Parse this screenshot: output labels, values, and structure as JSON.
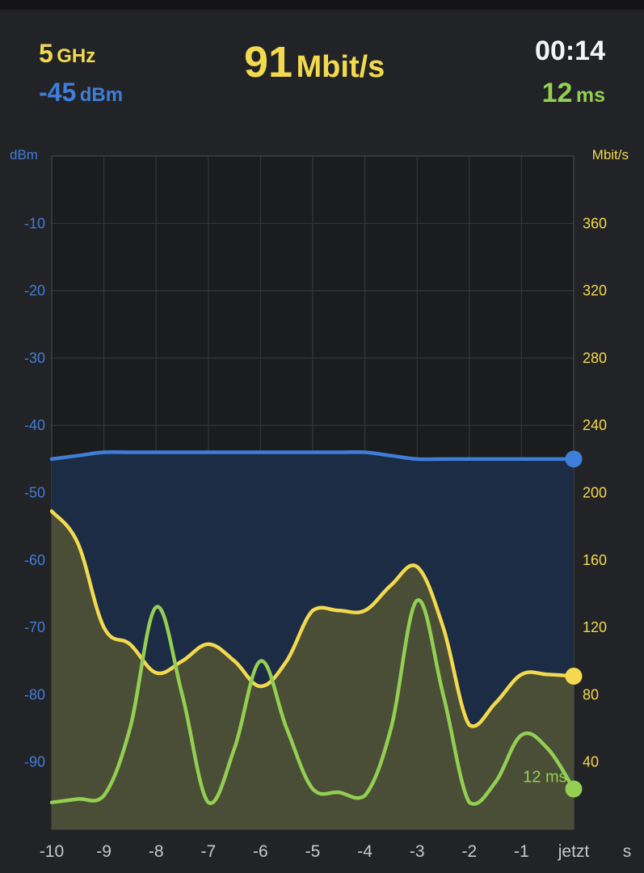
{
  "header": {
    "band_value": "5",
    "band_unit": "GHz",
    "signal_value": "-45",
    "signal_unit": "dBm",
    "speed_value": "91",
    "speed_unit": "Mbit/s",
    "elapsed": "00:14",
    "latency_value": "12",
    "latency_unit": "ms"
  },
  "colors": {
    "signal": "#3f7ed8",
    "speed": "#f2d94e",
    "latency": "#93cf52",
    "background": "#222326",
    "plot_background": "#1b1c1e"
  },
  "chart_data": {
    "type": "line",
    "x": [
      -10,
      -9.5,
      -9,
      -8.5,
      -8,
      -7.5,
      -7,
      -6.5,
      -6,
      -5.5,
      -5,
      -4.5,
      -4,
      -3.5,
      -3,
      -2.5,
      -2,
      -1.5,
      -1,
      -0.5,
      0
    ],
    "x_tick_values": [
      -10,
      -9,
      -8,
      -7,
      -6,
      -5,
      -4,
      -3,
      -2,
      -1,
      0
    ],
    "x_tick_labels": [
      "-10",
      "-9",
      "-8",
      "-7",
      "-6",
      "-5",
      "-4",
      "-3",
      "-2",
      "-1",
      "jetzt"
    ],
    "x_unit": "s",
    "xlim": [
      -10,
      0
    ],
    "left_axis": {
      "label": "dBm",
      "ylim": [
        -100,
        0
      ],
      "tick_values": [
        -10,
        -20,
        -30,
        -40,
        -50,
        -60,
        -70,
        -80,
        -90
      ]
    },
    "right_axis": {
      "label": "Mbit/s",
      "ylim": [
        0,
        400
      ],
      "tick_values": [
        360,
        320,
        280,
        240,
        200,
        160,
        120,
        80,
        40
      ]
    },
    "grid": true,
    "series": [
      {
        "key": "signal",
        "axis": "left",
        "values": [
          -45,
          -44.5,
          -44,
          -44,
          -44,
          -44,
          -44,
          -44,
          -44,
          -44,
          -44,
          -44,
          -44,
          -44.5,
          -45,
          -45,
          -45,
          -45,
          -45,
          -45,
          -45
        ]
      },
      {
        "key": "speed",
        "axis": "right",
        "values": [
          189,
          170,
          120,
          110,
          93,
          100,
          110,
          100,
          85,
          100,
          130,
          130,
          130,
          145,
          156,
          120,
          62,
          75,
          92,
          92,
          91
        ]
      },
      {
        "key": "latency",
        "axis": "left",
        "values": [
          -96,
          -95.5,
          -95,
          -85,
          -67,
          -80,
          -96,
          -88,
          -75,
          -85,
          -94,
          -94.5,
          -95,
          -85,
          -66,
          -80,
          -96,
          -93,
          -86,
          -88,
          -94
        ]
      }
    ],
    "annotations": [
      {
        "text": "12 ms",
        "series": "latency",
        "x": -0.5,
        "y": -92
      }
    ]
  }
}
